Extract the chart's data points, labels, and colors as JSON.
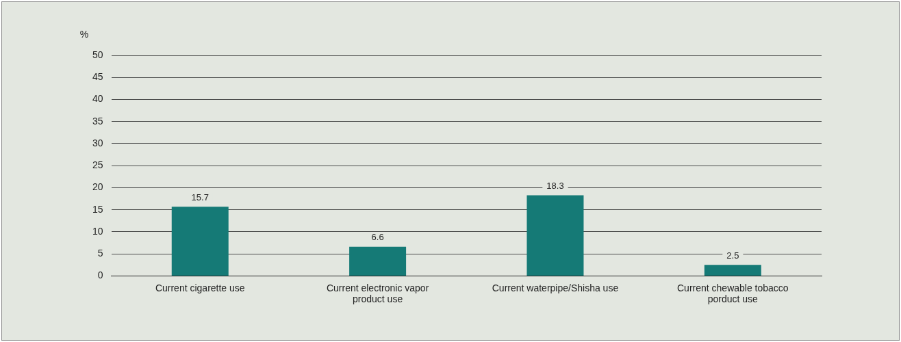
{
  "chart_data": {
    "type": "bar",
    "ylabel": "%",
    "categories": [
      "Current cigarette use",
      "Current electronic vapor product use",
      "Current waterpipe/Shisha use",
      "Current chewable tobacco porduct use"
    ],
    "values": [
      15.7,
      6.6,
      18.3,
      2.5
    ],
    "color": "#157a76",
    "ylim": [
      0,
      50
    ],
    "yticks": [
      0,
      5,
      10,
      15,
      20,
      25,
      30,
      35,
      40,
      45,
      50
    ],
    "grid": "y",
    "data_labels": true,
    "legend": false
  }
}
